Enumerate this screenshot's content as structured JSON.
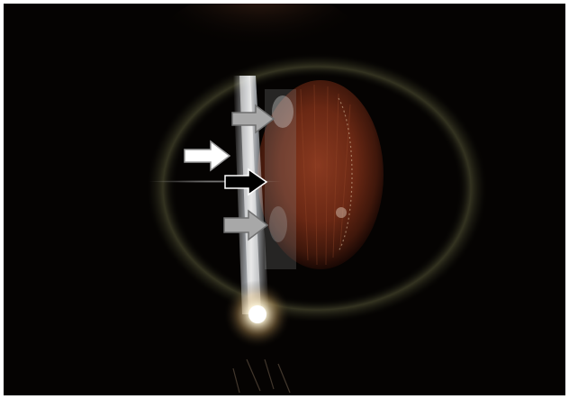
{
  "image": {
    "kind": "slit-lamp-photograph",
    "background_color": "#050302",
    "iris_color": "#7a2f1a",
    "slit_beam_color": "#dfe6ee",
    "arrows": [
      {
        "name": "upper-gray-arrow",
        "fill": "#a8a8a8",
        "stroke": "#6f6f6f",
        "direction": "right"
      },
      {
        "name": "white-arrow",
        "fill": "#ffffff",
        "stroke": "#9a9a9a",
        "direction": "right"
      },
      {
        "name": "black-arrow",
        "fill": "#000000",
        "stroke": "#ffffff",
        "direction": "right"
      },
      {
        "name": "lower-gray-arrow",
        "fill": "#a8a8a8",
        "stroke": "#6f6f6f",
        "direction": "right"
      }
    ]
  }
}
